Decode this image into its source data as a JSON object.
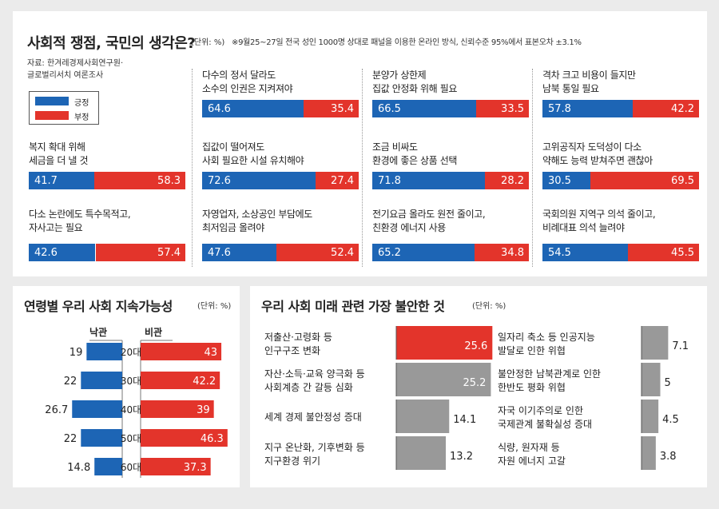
{
  "top": {
    "title": "사회적 쟁점, 국민의 생각은?",
    "unit": "(단위: %)",
    "note": "※9월25~27일 전국 성인 1000명 상대로 패널을 이용한 온라인 방식, 신뢰수준 95%에서 표본오차 ±3.1%",
    "source_line1": "자료: 한겨레경제사회연구원·",
    "source_line2": "글로벌리서치 여론조사",
    "legend": {
      "agree": "긍정",
      "disagree": "부정"
    },
    "colors": {
      "agree": "#1d65b5",
      "disagree": "#e3342b"
    }
  },
  "age_panel": {
    "title": "연령별 우리 사회 지속가능성",
    "unit": "(단위: %)",
    "optimistic_label": "낙관",
    "pessimistic_label": "비관"
  },
  "anxiety_panel": {
    "title": "우리 사회 미래 관련 가장 불안한 것",
    "unit": "(단위: %)"
  },
  "chart_data": [
    {
      "type": "bar",
      "title": "사회적 쟁점, 국민의 생각은?",
      "series_names": [
        "긍정",
        "부정"
      ],
      "items": [
        {
          "q1": "복지 확대 위해",
          "q2": "세금을 더 낼 것",
          "agree": "41.7",
          "disagree": "58.3"
        },
        {
          "q1": "다소 논란에도 특수목적고,",
          "q2": "자사고는 필요",
          "agree": "42.6",
          "disagree": "57.4"
        },
        {
          "q1": "다수의 정서 달라도",
          "q2": "소수의 인권은 지켜져야",
          "agree": "64.6",
          "disagree": "35.4"
        },
        {
          "q1": "집값이 떨어져도",
          "q2": "사회 필요한 시설 유치해야",
          "agree": "72.6",
          "disagree": "27.4"
        },
        {
          "q1": "자영업자, 소상공인 부담에도",
          "q2": "최저임금 올려야",
          "agree": "47.6",
          "disagree": "52.4"
        },
        {
          "q1": "분양가 상한제",
          "q2": "집값 안정화 위해 필요",
          "agree": "66.5",
          "disagree": "33.5"
        },
        {
          "q1": "조금 비싸도",
          "q2": "환경에 좋은 상품 선택",
          "agree": "71.8",
          "disagree": "28.2"
        },
        {
          "q1": "전기요금 올라도 원전 줄이고,",
          "q2": "친환경 에너지 사용",
          "agree": "65.2",
          "disagree": "34.8"
        },
        {
          "q1": "격차 크고 비용이 들지만",
          "q2": "남북 통일 필요",
          "agree": "57.8",
          "disagree": "42.2"
        },
        {
          "q1": "고위공직자 도덕성이 다소",
          "q2": "약해도 능력 받쳐주면 괜찮아",
          "agree": "30.5",
          "disagree": "69.5"
        },
        {
          "q1": "국회의원 지역구 의석 줄이고,",
          "q2": "비례대표 의석 늘려야",
          "agree": "54.5",
          "disagree": "45.5"
        }
      ]
    },
    {
      "type": "bar",
      "title": "연령별 우리 사회 지속가능성",
      "categories": [
        "20대",
        "30대",
        "40대",
        "50대",
        "60대"
      ],
      "series": [
        {
          "name": "낙관",
          "values": [
            "19",
            "22",
            "26.7",
            "22",
            "14.8"
          ],
          "color": "#1d65b5"
        },
        {
          "name": "비관",
          "values": [
            "43",
            "42.2",
            "39",
            "46.3",
            "37.3"
          ],
          "color": "#e3342b"
        }
      ]
    },
    {
      "type": "bar",
      "title": "우리 사회 미래 관련 가장 불안한 것",
      "items": [
        {
          "l1": "저출산·고령화 등",
          "l2": "인구구조 변화",
          "value": "25.6",
          "color": "#e3342b"
        },
        {
          "l1": "자산·소득·교육 양극화 등",
          "l2": "사회계층 간 갈등 심화",
          "value": "25.2",
          "color": "#999999"
        },
        {
          "l1": "세계 경제 불안정성 증대",
          "l2": "",
          "value": "14.1",
          "color": "#999999"
        },
        {
          "l1": "지구 온난화, 기후변화 등",
          "l2": "지구환경 위기",
          "value": "13.2",
          "color": "#999999"
        },
        {
          "l1": "일자리 축소 등 인공지능",
          "l2": "발달로 인한 위협",
          "value": "7.1",
          "color": "#999999"
        },
        {
          "l1": "불안정한 남북관계로 인한",
          "l2": "한반도 평화 위협",
          "value": "5",
          "color": "#999999"
        },
        {
          "l1": "자국 이기주의로 인한",
          "l2": "국제관계 불확실성 증대",
          "value": "4.5",
          "color": "#999999"
        },
        {
          "l1": "식량, 원자재 등",
          "l2": "자원 에너지 고갈",
          "value": "3.8",
          "color": "#999999"
        }
      ]
    }
  ]
}
